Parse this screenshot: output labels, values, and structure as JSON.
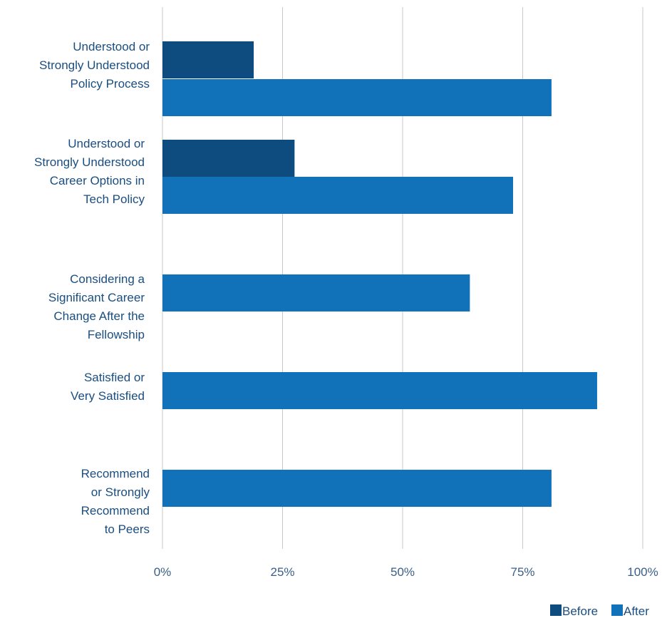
{
  "chart_data": {
    "type": "bar",
    "orientation": "horizontal",
    "categories": [
      [
        "Understood or",
        "Strongly Understood",
        "Policy Process"
      ],
      [
        "Understood or",
        "Strongly Understood",
        "Career Options in",
        "Tech Policy"
      ],
      [
        "Considering a",
        "Significant Career",
        "Change After the",
        "Fellowship"
      ],
      [
        "Satisfied or",
        "Very Satisfied"
      ],
      [
        "Recommend",
        "or Strongly",
        "Recommend",
        "to Peers"
      ]
    ],
    "series": [
      {
        "name": "Before",
        "color": "#0e4c80",
        "values": [
          19,
          27.5,
          null,
          null,
          null
        ]
      },
      {
        "name": "After",
        "color": "#1272b9",
        "values": [
          81,
          73,
          64,
          90.5,
          81
        ]
      }
    ],
    "xlim": [
      0,
      100
    ],
    "xticks": [
      "0%",
      "25%",
      "50%",
      "75%",
      "100%"
    ],
    "xtick_values": [
      0,
      25,
      50,
      75,
      100
    ],
    "grid": true,
    "legend_position": "bottom-right"
  }
}
